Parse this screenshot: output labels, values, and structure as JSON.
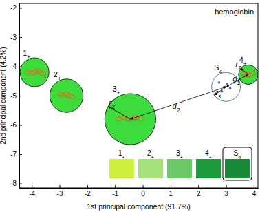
{
  "chart_data": {
    "type": "scatter",
    "title": "hemoglobin",
    "x_label": "1st principal component (91.7%)",
    "y_label": "2nd principal component (4.2%)",
    "xlim": [
      -4.45,
      4.15
    ],
    "ylim": [
      -8.15,
      -1.85
    ],
    "xticks": [
      -4,
      -3,
      -2,
      -1,
      0,
      1,
      2,
      3,
      4
    ],
    "yticks": [
      -2,
      -3,
      -4,
      -5,
      -6,
      -7,
      -8
    ],
    "clusters": [
      {
        "name": "1+",
        "x": -3.9,
        "y": -4.2,
        "radius": 0.52,
        "color": "#3ddc3d",
        "marker": "filled"
      },
      {
        "name": "2+",
        "x": -2.75,
        "y": -5.0,
        "radius": 0.6,
        "color": "#3ddc3d",
        "marker": "filled"
      },
      {
        "name": "3+",
        "x": -0.45,
        "y": -5.8,
        "radius": 0.92,
        "color": "#3ddc3d",
        "marker": "filled"
      },
      {
        "name": "4+",
        "x": 3.8,
        "y": -4.28,
        "radius": 0.35,
        "color": "#3ddc3d",
        "marker": "filled"
      },
      {
        "name": "S4",
        "x": 3.0,
        "y": -4.7,
        "radius": 0.52,
        "color": "#3355bb",
        "marker": "open"
      }
    ],
    "series": [
      {
        "color": "#e8641e",
        "marker": "ellipse",
        "x": [
          -4.15,
          -4.0,
          -3.9,
          -3.8,
          -3.7,
          -3.6
        ],
        "values": [
          -4.2,
          -4.25,
          -4.2,
          -4.15,
          -4.2,
          -4.25
        ]
      },
      {
        "color": "#e8641e",
        "marker": "ellipse",
        "x": [
          -2.95,
          -2.85,
          -2.75,
          -2.65,
          -2.55
        ],
        "values": [
          -4.95,
          -5.0,
          -4.95,
          -5.0,
          -5.05
        ]
      },
      {
        "color": "#e8641e",
        "marker": "ellipse",
        "x": [
          -0.85,
          -0.7,
          -0.55,
          -0.4,
          -0.25,
          -0.1
        ],
        "values": [
          -5.8,
          -5.75,
          -5.8,
          -5.8,
          -5.75,
          -5.8
        ]
      },
      {
        "color": "#e8641e",
        "marker": "ellipse",
        "x": [
          3.65,
          3.75,
          3.85,
          3.95
        ],
        "values": [
          -4.25,
          -4.3,
          -4.3,
          -4.25
        ]
      },
      {
        "color": "#4466cc",
        "marker": "dot",
        "x": [
          2.75,
          2.85,
          2.95,
          3.05,
          3.15,
          3.3,
          3.45
        ],
        "values": [
          -4.55,
          -4.85,
          -4.7,
          -4.6,
          -4.75,
          -4.55,
          -4.5
        ]
      }
    ],
    "annotations": [
      {
        "text": "r1",
        "x": 3.45,
        "y": -4.02
      },
      {
        "text": "d1",
        "x": 3.38,
        "y": -4.5
      },
      {
        "text": "rs",
        "x": 2.72,
        "y": -4.97
      },
      {
        "text": "r2",
        "x": -1.12,
        "y": -5.32
      },
      {
        "text": "d2",
        "x": 1.2,
        "y": -5.45
      }
    ],
    "swatches": [
      {
        "label": "1+",
        "color": "#ccf03c"
      },
      {
        "label": "2+",
        "color": "#a6e07a"
      },
      {
        "label": "3+",
        "color": "#6ec868"
      },
      {
        "label": "4+",
        "color": "#1e9a3c"
      },
      {
        "label": "S4",
        "color": "#1a8a38"
      }
    ]
  }
}
